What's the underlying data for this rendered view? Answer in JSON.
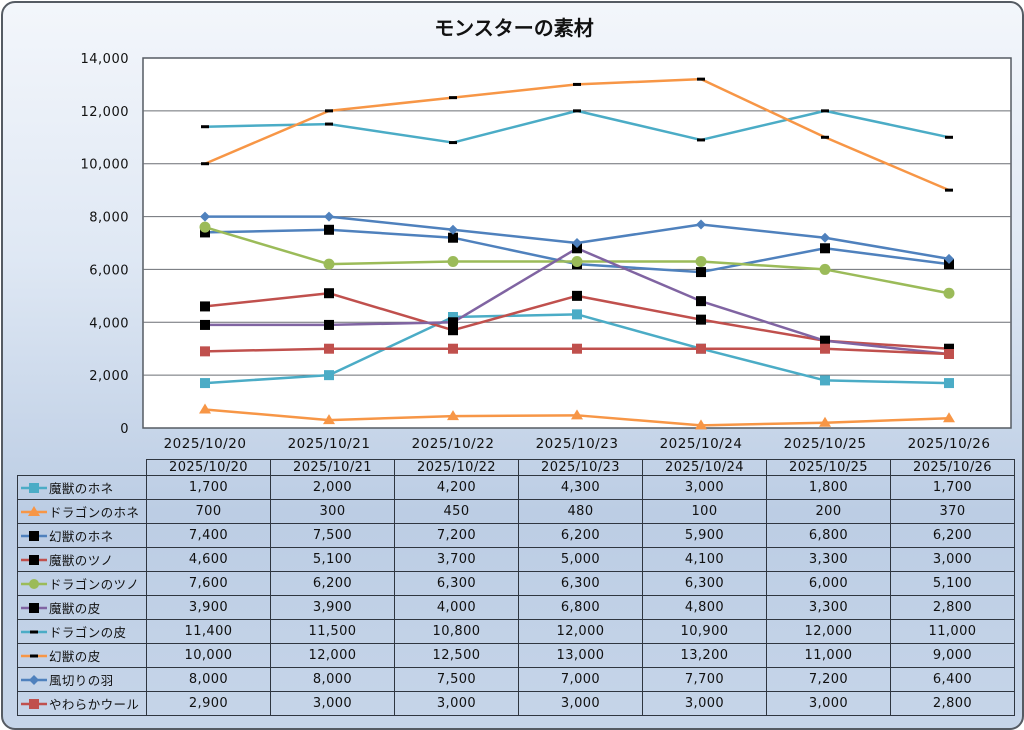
{
  "chart_data": {
    "type": "line",
    "title": "モンスターの素材",
    "xlabel": "",
    "ylabel": "",
    "ylim": [
      0,
      14000
    ],
    "yticks": [
      0,
      2000,
      4000,
      6000,
      8000,
      10000,
      12000,
      14000
    ],
    "ytick_labels": [
      "0",
      "2,000",
      "4,000",
      "6,000",
      "8,000",
      "10,000",
      "12,000",
      "14,000"
    ],
    "grid": true,
    "legend": "data-table-bottom",
    "categories": [
      "2025/10/20",
      "2025/10/21",
      "2025/10/22",
      "2025/10/23",
      "2025/10/24",
      "2025/10/25",
      "2025/10/26"
    ],
    "series": [
      {
        "name": "魔獣のホネ",
        "color": "#4bacc6",
        "marker": "square",
        "marker_color": "#4bacc6",
        "values": [
          1700,
          2000,
          4200,
          4300,
          3000,
          1800,
          1700
        ],
        "labels": [
          "1,700",
          "2,000",
          "4,200",
          "4,300",
          "3,000",
          "1,800",
          "1,700"
        ]
      },
      {
        "name": "ドラゴンのホネ",
        "color": "#f79646",
        "marker": "triangle",
        "marker_color": "#f79646",
        "values": [
          700,
          300,
          450,
          480,
          100,
          200,
          370
        ],
        "labels": [
          "700",
          "300",
          "450",
          "480",
          "100",
          "200",
          "370"
        ]
      },
      {
        "name": "幻獣のホネ",
        "color": "#4f81bd",
        "marker": "square",
        "marker_color": "#000000",
        "values": [
          7400,
          7500,
          7200,
          6200,
          5900,
          6800,
          6200
        ],
        "labels": [
          "7,400",
          "7,500",
          "7,200",
          "6,200",
          "5,900",
          "6,800",
          "6,200"
        ]
      },
      {
        "name": "魔獣のツノ",
        "color": "#c0504d",
        "marker": "square",
        "marker_color": "#000000",
        "values": [
          4600,
          5100,
          3700,
          5000,
          4100,
          3300,
          3000
        ],
        "labels": [
          "4,600",
          "5,100",
          "3,700",
          "5,000",
          "4,100",
          "3,300",
          "3,000"
        ]
      },
      {
        "name": "ドラゴンのツノ",
        "color": "#9bbb59",
        "marker": "circle",
        "marker_color": "#9bbb59",
        "values": [
          7600,
          6200,
          6300,
          6300,
          6300,
          6000,
          5100
        ],
        "labels": [
          "7,600",
          "6,200",
          "6,300",
          "6,300",
          "6,300",
          "6,000",
          "5,100"
        ]
      },
      {
        "name": "魔獣の皮",
        "color": "#8064a2",
        "marker": "square",
        "marker_color": "#000000",
        "values": [
          3900,
          3900,
          4000,
          6800,
          4800,
          3300,
          2800
        ],
        "labels": [
          "3,900",
          "3,900",
          "4,000",
          "6,800",
          "4,800",
          "3,300",
          "2,800"
        ]
      },
      {
        "name": "ドラゴンの皮",
        "color": "#4bacc6",
        "marker": "dash",
        "marker_color": "#000000",
        "values": [
          11400,
          11500,
          10800,
          12000,
          10900,
          12000,
          11000
        ],
        "labels": [
          "11,400",
          "11,500",
          "10,800",
          "12,000",
          "10,900",
          "12,000",
          "11,000"
        ]
      },
      {
        "name": "幻獣の皮",
        "color": "#f79646",
        "marker": "dash",
        "marker_color": "#000000",
        "values": [
          10000,
          12000,
          12500,
          13000,
          13200,
          11000,
          9000
        ],
        "labels": [
          "10,000",
          "12,000",
          "12,500",
          "13,000",
          "13,200",
          "11,000",
          "9,000"
        ]
      },
      {
        "name": "風切りの羽",
        "color": "#4f81bd",
        "marker": "diamond",
        "marker_color": "#4f81bd",
        "values": [
          8000,
          8000,
          7500,
          7000,
          7700,
          7200,
          6400
        ],
        "labels": [
          "8,000",
          "8,000",
          "7,500",
          "7,000",
          "7,700",
          "7,200",
          "6,400"
        ]
      },
      {
        "name": "やわらかウール",
        "color": "#c0504d",
        "marker": "square",
        "marker_color": "#c0504d",
        "values": [
          2900,
          3000,
          3000,
          3000,
          3000,
          3000,
          2800
        ],
        "labels": [
          "2,900",
          "3,000",
          "3,000",
          "3,000",
          "3,000",
          "3,000",
          "2,800"
        ]
      }
    ]
  }
}
